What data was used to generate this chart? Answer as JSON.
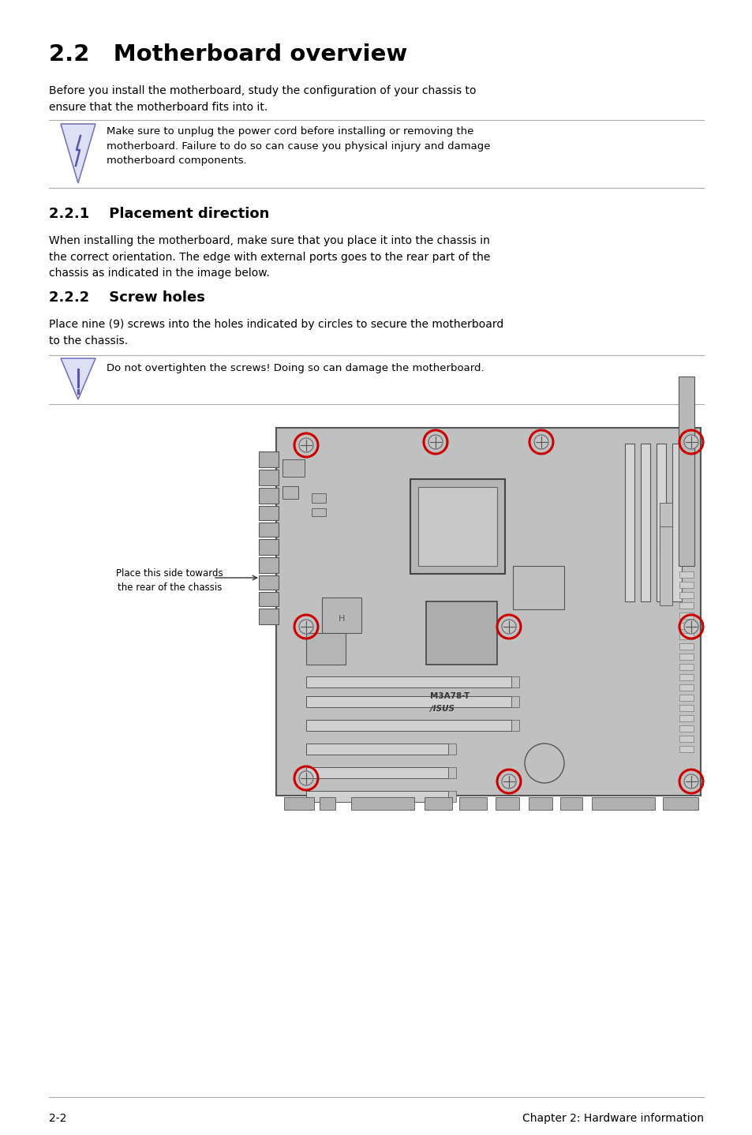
{
  "title": "2.2   Motherboard overview",
  "body_text_1": "Before you install the motherboard, study the configuration of your chassis to\nensure that the motherboard fits into it.",
  "warning_text_1": "Make sure to unplug the power cord before installing or removing the\nmotherboard. Failure to do so can cause you physical injury and damage\nmotherboard components.",
  "section_221": "2.2.1    Placement direction",
  "body_text_221": "When installing the motherboard, make sure that you place it into the chassis in\nthe correct orientation. The edge with external ports goes to the rear part of the\nchassis as indicated in the image below.",
  "section_222": "2.2.2    Screw holes",
  "body_text_222": "Place nine (9) screws into the holes indicated by circles to secure the motherboard\nto the chassis.",
  "warning_text_2": "Do not overtighten the screws! Doing so can damage the motherboard.",
  "placement_label": "Place this side towards\nthe rear of the chassis",
  "model_name": "M3A78-T",
  "brand_name": "∕ISUS",
  "footer_left": "2-2",
  "footer_right": "Chapter 2: Hardware information",
  "bg_color": "#ffffff",
  "text_color": "#000000",
  "board_color": "#c0c0c0",
  "board_border": "#555555",
  "screw_color": "#cc0000",
  "line_color": "#aaaaaa",
  "icon_fill": "#dde0f5",
  "icon_edge": "#7777bb",
  "icon_mark": "#5555aa"
}
